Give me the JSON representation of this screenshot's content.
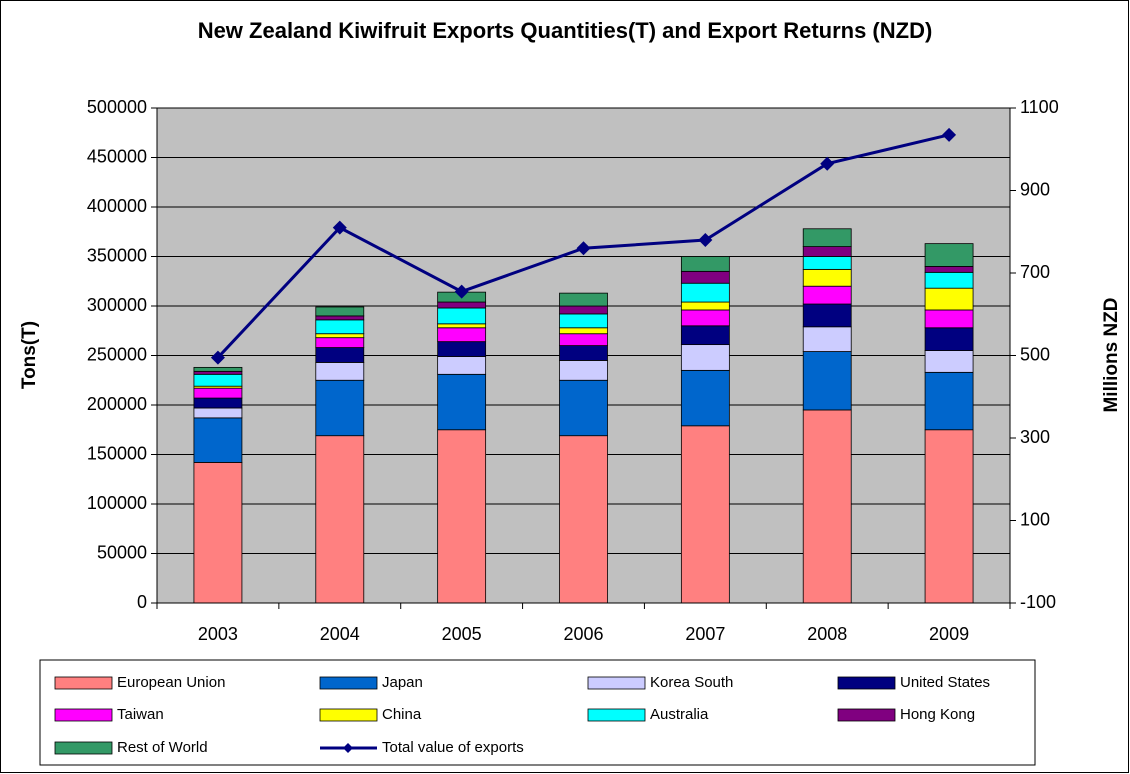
{
  "chart_data": {
    "type": "bar",
    "title": "New Zealand Kiwifruit Exports Quantities(T) and Export Returns (NZD)",
    "ylabel": "Tons(T)",
    "y2label": "Millions NZD",
    "stacked": true,
    "grid": true,
    "background": "#c0c0c0",
    "categories": [
      "2003",
      "2004",
      "2005",
      "2006",
      "2007",
      "2008",
      "2009"
    ],
    "ylim": [
      0,
      500000
    ],
    "yticks": [
      0,
      50000,
      100000,
      150000,
      200000,
      250000,
      300000,
      350000,
      400000,
      450000,
      500000
    ],
    "y2lim": [
      -100,
      1100
    ],
    "y2ticks": [
      -100,
      100,
      300,
      500,
      700,
      900,
      1100
    ],
    "series": [
      {
        "name": "European Union",
        "color": "#ff8080",
        "values": [
          142000,
          169000,
          175000,
          169000,
          179000,
          195000,
          175000
        ]
      },
      {
        "name": "Japan",
        "color": "#0066cc",
        "values": [
          45000,
          56000,
          56000,
          56000,
          56000,
          59000,
          58000
        ]
      },
      {
        "name": "Korea South",
        "color": "#ccccff",
        "values": [
          10000,
          18000,
          18000,
          20000,
          26000,
          25000,
          22000
        ]
      },
      {
        "name": "United States",
        "color": "#000080",
        "values": [
          10000,
          15000,
          15000,
          15000,
          19000,
          23000,
          23000
        ]
      },
      {
        "name": "Taiwan",
        "color": "#ff00ff",
        "values": [
          10000,
          10000,
          14000,
          12000,
          16000,
          18000,
          18000
        ]
      },
      {
        "name": "China",
        "color": "#ffff00",
        "values": [
          2000,
          4000,
          4000,
          6000,
          8000,
          17000,
          22000
        ]
      },
      {
        "name": "Australia",
        "color": "#00ffff",
        "values": [
          12000,
          14000,
          16000,
          14000,
          19000,
          13000,
          16000
        ]
      },
      {
        "name": "Hong Kong",
        "color": "#800080",
        "values": [
          3000,
          4000,
          6000,
          8000,
          12000,
          10000,
          6000
        ]
      },
      {
        "name": "Rest of World",
        "color": "#339966",
        "values": [
          4000,
          9000,
          10000,
          13000,
          15000,
          18000,
          23000
        ]
      },
      {
        "name": "Total value of exports",
        "color": "#000080",
        "type": "line",
        "axis": "y2",
        "values": [
          495,
          810,
          655,
          760,
          780,
          965,
          1035
        ]
      }
    ]
  }
}
